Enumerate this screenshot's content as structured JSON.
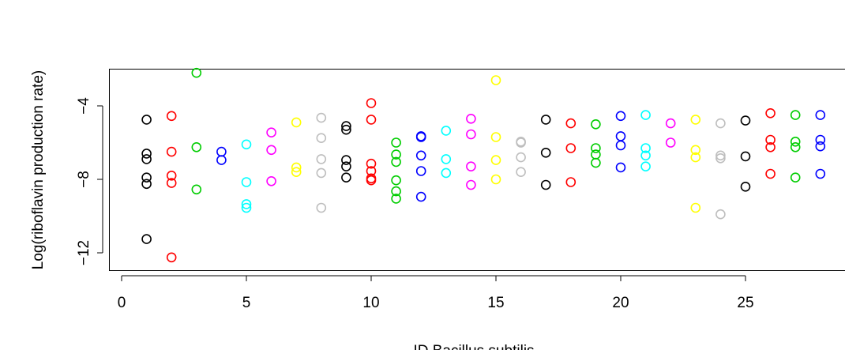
{
  "chart_data": {
    "type": "scatter",
    "xlabel": "ID Bacillus subtilis",
    "ylabel": "Log(riboflavin production rate)",
    "xlim": [
      0,
      28.4
    ],
    "ylim": [
      -13.0,
      -1.8
    ],
    "x_ticks": [
      0,
      5,
      10,
      15,
      20,
      25
    ],
    "y_ticks": [
      -4,
      -8,
      -12
    ],
    "x_tick_labels": [
      "0",
      "5",
      "10",
      "15",
      "20",
      "25"
    ],
    "y_tick_labels": [
      "−4",
      "−8",
      "−12"
    ],
    "grid": false,
    "legend": "none",
    "colors": [
      "#000000",
      "#ff0000",
      "#00cd00",
      "#0000ff",
      "#00ffff",
      "#ff00ff",
      "#ffff00",
      "#bebebe"
    ],
    "points": [
      {
        "x": 1,
        "y": -4.75,
        "color": "#000000"
      },
      {
        "x": 1,
        "y": -6.6,
        "color": "#000000"
      },
      {
        "x": 1,
        "y": -6.9,
        "color": "#000000"
      },
      {
        "x": 1,
        "y": -7.9,
        "color": "#000000"
      },
      {
        "x": 1,
        "y": -8.25,
        "color": "#000000"
      },
      {
        "x": 1,
        "y": -11.25,
        "color": "#000000"
      },
      {
        "x": 2,
        "y": -4.55,
        "color": "#ff0000"
      },
      {
        "x": 2,
        "y": -6.5,
        "color": "#ff0000"
      },
      {
        "x": 2,
        "y": -7.8,
        "color": "#ff0000"
      },
      {
        "x": 2,
        "y": -8.2,
        "color": "#ff0000"
      },
      {
        "x": 2,
        "y": -12.25,
        "color": "#ff0000"
      },
      {
        "x": 3,
        "y": -2.2,
        "color": "#00cd00"
      },
      {
        "x": 3,
        "y": -6.25,
        "color": "#00cd00"
      },
      {
        "x": 3,
        "y": -8.55,
        "color": "#00cd00"
      },
      {
        "x": 4,
        "y": -6.5,
        "color": "#0000ff"
      },
      {
        "x": 4,
        "y": -6.95,
        "color": "#0000ff"
      },
      {
        "x": 5,
        "y": -6.1,
        "color": "#00ffff"
      },
      {
        "x": 5,
        "y": -8.15,
        "color": "#00ffff"
      },
      {
        "x": 5,
        "y": -9.35,
        "color": "#00ffff"
      },
      {
        "x": 5,
        "y": -9.55,
        "color": "#00ffff"
      },
      {
        "x": 6,
        "y": -5.45,
        "color": "#ff00ff"
      },
      {
        "x": 6,
        "y": -6.4,
        "color": "#ff00ff"
      },
      {
        "x": 6,
        "y": -8.1,
        "color": "#ff00ff"
      },
      {
        "x": 7,
        "y": -4.9,
        "color": "#ffff00"
      },
      {
        "x": 7,
        "y": -7.35,
        "color": "#ffff00"
      },
      {
        "x": 7,
        "y": -7.6,
        "color": "#ffff00"
      },
      {
        "x": 8,
        "y": -4.65,
        "color": "#bebebe"
      },
      {
        "x": 8,
        "y": -5.75,
        "color": "#bebebe"
      },
      {
        "x": 8,
        "y": -6.9,
        "color": "#bebebe"
      },
      {
        "x": 8,
        "y": -7.65,
        "color": "#bebebe"
      },
      {
        "x": 8,
        "y": -9.55,
        "color": "#bebebe"
      },
      {
        "x": 9,
        "y": -5.1,
        "color": "#000000"
      },
      {
        "x": 9,
        "y": -5.3,
        "color": "#000000"
      },
      {
        "x": 9,
        "y": -6.95,
        "color": "#000000"
      },
      {
        "x": 9,
        "y": -7.3,
        "color": "#000000"
      },
      {
        "x": 9,
        "y": -7.9,
        "color": "#000000"
      },
      {
        "x": 10,
        "y": -3.85,
        "color": "#ff0000"
      },
      {
        "x": 10,
        "y": -4.75,
        "color": "#ff0000"
      },
      {
        "x": 10,
        "y": -7.15,
        "color": "#ff0000"
      },
      {
        "x": 10,
        "y": -7.55,
        "color": "#ff0000"
      },
      {
        "x": 10,
        "y": -7.95,
        "color": "#ff0000"
      },
      {
        "x": 10,
        "y": -8.05,
        "color": "#ff0000"
      },
      {
        "x": 11,
        "y": -6.0,
        "color": "#00cd00"
      },
      {
        "x": 11,
        "y": -6.65,
        "color": "#00cd00"
      },
      {
        "x": 11,
        "y": -7.05,
        "color": "#00cd00"
      },
      {
        "x": 11,
        "y": -8.05,
        "color": "#00cd00"
      },
      {
        "x": 11,
        "y": -8.65,
        "color": "#00cd00"
      },
      {
        "x": 11,
        "y": -9.05,
        "color": "#00cd00"
      },
      {
        "x": 12,
        "y": -5.65,
        "color": "#0000ff"
      },
      {
        "x": 12,
        "y": -5.7,
        "color": "#0000ff"
      },
      {
        "x": 12,
        "y": -6.7,
        "color": "#0000ff"
      },
      {
        "x": 12,
        "y": -7.55,
        "color": "#0000ff"
      },
      {
        "x": 12,
        "y": -8.95,
        "color": "#0000ff"
      },
      {
        "x": 13,
        "y": -5.35,
        "color": "#00ffff"
      },
      {
        "x": 13,
        "y": -6.9,
        "color": "#00ffff"
      },
      {
        "x": 13,
        "y": -7.65,
        "color": "#00ffff"
      },
      {
        "x": 14,
        "y": -4.7,
        "color": "#ff00ff"
      },
      {
        "x": 14,
        "y": -5.55,
        "color": "#ff00ff"
      },
      {
        "x": 14,
        "y": -7.3,
        "color": "#ff00ff"
      },
      {
        "x": 14,
        "y": -8.3,
        "color": "#ff00ff"
      },
      {
        "x": 15,
        "y": -2.6,
        "color": "#ffff00"
      },
      {
        "x": 15,
        "y": -5.7,
        "color": "#ffff00"
      },
      {
        "x": 15,
        "y": -6.95,
        "color": "#ffff00"
      },
      {
        "x": 15,
        "y": -8.0,
        "color": "#ffff00"
      },
      {
        "x": 16,
        "y": -5.95,
        "color": "#bebebe"
      },
      {
        "x": 16,
        "y": -6.0,
        "color": "#bebebe"
      },
      {
        "x": 16,
        "y": -6.8,
        "color": "#bebebe"
      },
      {
        "x": 16,
        "y": -7.6,
        "color": "#bebebe"
      },
      {
        "x": 17,
        "y": -4.75,
        "color": "#000000"
      },
      {
        "x": 17,
        "y": -6.55,
        "color": "#000000"
      },
      {
        "x": 17,
        "y": -8.3,
        "color": "#000000"
      },
      {
        "x": 18,
        "y": -4.95,
        "color": "#ff0000"
      },
      {
        "x": 18,
        "y": -6.3,
        "color": "#ff0000"
      },
      {
        "x": 18,
        "y": -8.15,
        "color": "#ff0000"
      },
      {
        "x": 19,
        "y": -5.0,
        "color": "#00cd00"
      },
      {
        "x": 19,
        "y": -6.3,
        "color": "#00cd00"
      },
      {
        "x": 19,
        "y": -6.65,
        "color": "#00cd00"
      },
      {
        "x": 19,
        "y": -7.1,
        "color": "#00cd00"
      },
      {
        "x": 20,
        "y": -4.55,
        "color": "#0000ff"
      },
      {
        "x": 20,
        "y": -5.65,
        "color": "#0000ff"
      },
      {
        "x": 20,
        "y": -6.15,
        "color": "#0000ff"
      },
      {
        "x": 20,
        "y": -7.35,
        "color": "#0000ff"
      },
      {
        "x": 21,
        "y": -4.5,
        "color": "#00ffff"
      },
      {
        "x": 21,
        "y": -6.3,
        "color": "#00ffff"
      },
      {
        "x": 21,
        "y": -6.7,
        "color": "#00ffff"
      },
      {
        "x": 21,
        "y": -7.3,
        "color": "#00ffff"
      },
      {
        "x": 22,
        "y": -4.95,
        "color": "#ff00ff"
      },
      {
        "x": 22,
        "y": -6.0,
        "color": "#ff00ff"
      },
      {
        "x": 23,
        "y": -4.75,
        "color": "#ffff00"
      },
      {
        "x": 23,
        "y": -6.4,
        "color": "#ffff00"
      },
      {
        "x": 23,
        "y": -6.8,
        "color": "#ffff00"
      },
      {
        "x": 23,
        "y": -9.55,
        "color": "#ffff00"
      },
      {
        "x": 24,
        "y": -4.95,
        "color": "#bebebe"
      },
      {
        "x": 24,
        "y": -6.7,
        "color": "#bebebe"
      },
      {
        "x": 24,
        "y": -6.85,
        "color": "#bebebe"
      },
      {
        "x": 24,
        "y": -9.9,
        "color": "#bebebe"
      },
      {
        "x": 25,
        "y": -4.8,
        "color": "#000000"
      },
      {
        "x": 25,
        "y": -6.75,
        "color": "#000000"
      },
      {
        "x": 25,
        "y": -8.4,
        "color": "#000000"
      },
      {
        "x": 26,
        "y": -4.4,
        "color": "#ff0000"
      },
      {
        "x": 26,
        "y": -5.85,
        "color": "#ff0000"
      },
      {
        "x": 26,
        "y": -6.25,
        "color": "#ff0000"
      },
      {
        "x": 26,
        "y": -7.7,
        "color": "#ff0000"
      },
      {
        "x": 27,
        "y": -4.5,
        "color": "#00cd00"
      },
      {
        "x": 27,
        "y": -5.95,
        "color": "#00cd00"
      },
      {
        "x": 27,
        "y": -6.25,
        "color": "#00cd00"
      },
      {
        "x": 27,
        "y": -7.9,
        "color": "#00cd00"
      },
      {
        "x": 28,
        "y": -4.5,
        "color": "#0000ff"
      },
      {
        "x": 28,
        "y": -5.85,
        "color": "#0000ff"
      },
      {
        "x": 28,
        "y": -6.2,
        "color": "#0000ff"
      },
      {
        "x": 28,
        "y": -7.7,
        "color": "#0000ff"
      }
    ]
  }
}
